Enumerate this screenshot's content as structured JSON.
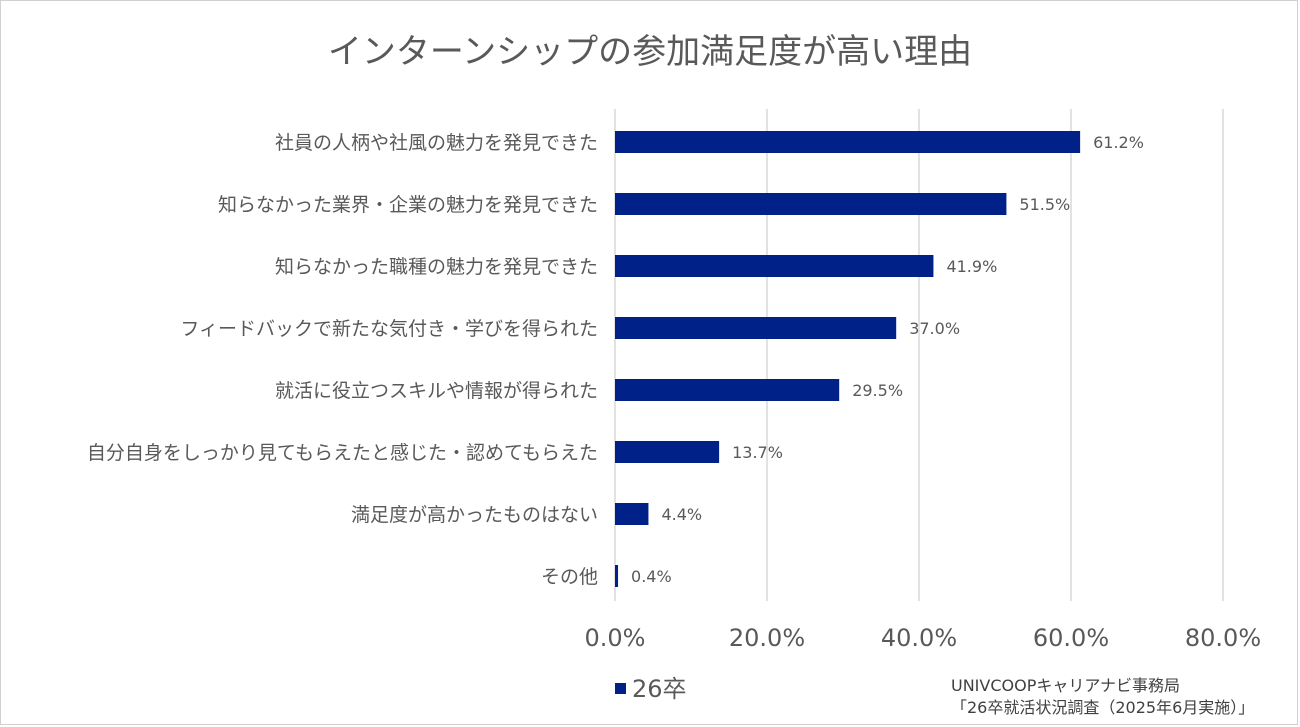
{
  "colors": {
    "bar": "#002187",
    "grid": "#d9d9d9",
    "text": "#595959"
  },
  "chart_data": {
    "type": "bar",
    "orientation": "horizontal",
    "title": "インターンシップの参加満足度が高い理由",
    "categories": [
      "社員の人柄や社風の魅力を発見できた",
      "知らなかった業界・企業の魅力を発見できた",
      "知らなかった職種の魅力を発見できた",
      "フィードバックで新たな気付き・学びを得られた",
      "就活に役立つスキルや情報が得られた",
      "自分自身をしっかり見てもらえたと感じた・認めてもらえた",
      "満足度が高かったものはない",
      "その他"
    ],
    "series": [
      {
        "name": "26卒",
        "values": [
          61.2,
          51.5,
          41.9,
          37.0,
          29.5,
          13.7,
          4.4,
          0.4
        ],
        "labels": [
          "61.2%",
          "51.5%",
          "41.9%",
          "37.0%",
          "29.5%",
          "13.7%",
          "4.4%",
          "0.4%"
        ]
      }
    ],
    "xlim": [
      0,
      80
    ],
    "xticks": [
      0,
      20,
      40,
      60,
      80
    ],
    "xtick_labels": [
      "0.0%",
      "20.0%",
      "40.0%",
      "60.0%",
      "80.0%"
    ],
    "grid": true,
    "legend": "bottom-left"
  },
  "source": {
    "line1": "UNIVCOOPキャリアナビ事務局",
    "line2": "「26卒就活状況調査（2025年6月実施）」"
  }
}
